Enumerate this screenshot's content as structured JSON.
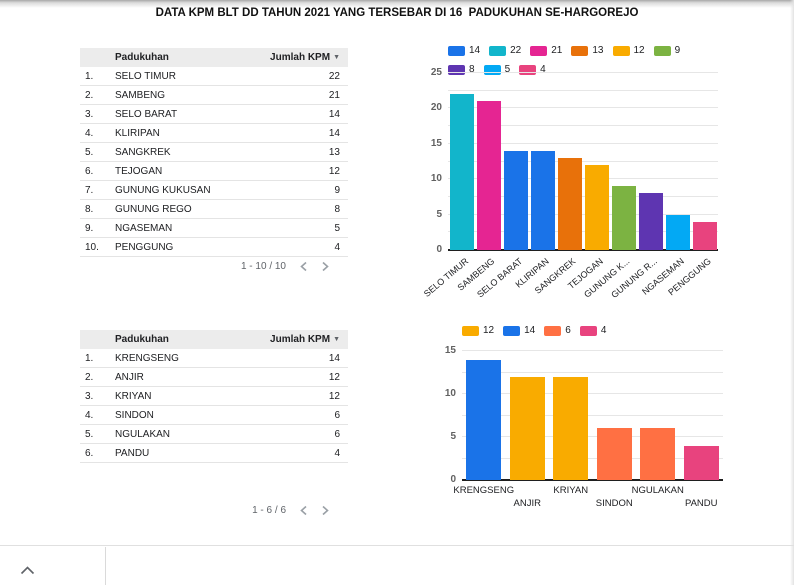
{
  "title": "DATA KPM BLT DD TAHUN 2021 YANG TERSEBAR DI 16  PADUKUHAN SE-HARGOREJO",
  "colors": {
    "table_header_bg": "#ececec",
    "divider": "#e4e4e4",
    "text": "#202124",
    "muted": "#5f6368",
    "gridline": "#e6e6e6",
    "axis_line": "#1f1f1f"
  },
  "tables": [
    {
      "header": {
        "dim": "Padukuhan",
        "metric": "Jumlah KPM",
        "sort": "▼"
      },
      "rows": [
        {
          "no": "1.",
          "padukuhan": "SELO TIMUR",
          "jumlah": "22"
        },
        {
          "no": "2.",
          "padukuhan": "SAMBENG",
          "jumlah": "21"
        },
        {
          "no": "3.",
          "padukuhan": "SELO BARAT",
          "jumlah": "14"
        },
        {
          "no": "4.",
          "padukuhan": "KLIRIPAN",
          "jumlah": "14"
        },
        {
          "no": "5.",
          "padukuhan": "SANGKREK",
          "jumlah": "13"
        },
        {
          "no": "6.",
          "padukuhan": "TEJOGAN",
          "jumlah": "12"
        },
        {
          "no": "7.",
          "padukuhan": "GUNUNG KUKUSAN",
          "jumlah": "9"
        },
        {
          "no": "8.",
          "padukuhan": "GUNUNG REGO",
          "jumlah": "8"
        },
        {
          "no": "9.",
          "padukuhan": "NGASEMAN",
          "jumlah": "5"
        },
        {
          "no": "10.",
          "padukuhan": "PENGGUNG",
          "jumlah": "4"
        }
      ],
      "pagination": "1 - 10 / 10"
    },
    {
      "header": {
        "dim": "Padukuhan",
        "metric": "Jumlah KPM",
        "sort": "▼"
      },
      "rows": [
        {
          "no": "1.",
          "padukuhan": "KRENGSENG",
          "jumlah": "14"
        },
        {
          "no": "2.",
          "padukuhan": "ANJIR",
          "jumlah": "12"
        },
        {
          "no": "3.",
          "padukuhan": "KRIYAN",
          "jumlah": "12"
        },
        {
          "no": "4.",
          "padukuhan": "SINDON",
          "jumlah": "6"
        },
        {
          "no": "5.",
          "padukuhan": "NGULAKAN",
          "jumlah": "6"
        },
        {
          "no": "6.",
          "padukuhan": "PANDU",
          "jumlah": "4"
        }
      ],
      "pagination": "1 - 6 / 6"
    }
  ],
  "chart_data": [
    {
      "type": "bar",
      "title": "",
      "categories": [
        "SELO TIMUR",
        "SAMBENG",
        "SELO BARAT",
        "KLIRIPAN",
        "SANGKREK",
        "TEJOGAN",
        "GUNUNG KUKUSAN",
        "GUNUNG REGO",
        "NGASEMAN",
        "PENGGUNG"
      ],
      "axis_labels": [
        "SELO TIMUR",
        "SAMBENG",
        "SELO BARAT",
        "KLIRIPAN",
        "SANGKREK",
        "TEJOGAN",
        "GUNUNG K...",
        "GUNUNG R...",
        "NGASEMAN",
        "PENGGUNG"
      ],
      "values": [
        22,
        21,
        14,
        14,
        13,
        12,
        9,
        8,
        5,
        4
      ],
      "bar_colors": [
        "#12b5cb",
        "#e52592",
        "#1a73e8",
        "#1a73e8",
        "#e8710a",
        "#f9ab00",
        "#7cb342",
        "#5e35b1",
        "#03a9f4",
        "#e8437e"
      ],
      "legend": [
        {
          "label": "14",
          "color": "#1a73e8"
        },
        {
          "label": "22",
          "color": "#12b5cb"
        },
        {
          "label": "21",
          "color": "#e52592"
        },
        {
          "label": "13",
          "color": "#e8710a"
        },
        {
          "label": "12",
          "color": "#f9ab00"
        },
        {
          "label": "9",
          "color": "#7cb342"
        },
        {
          "label": "8",
          "color": "#5e35b1"
        },
        {
          "label": "5",
          "color": "#03a9f4"
        },
        {
          "label": "4",
          "color": "#e8437e"
        }
      ],
      "legend_position": "top",
      "legend_wrap": 6,
      "xlabel": "",
      "ylabel": "",
      "ylim": [
        0,
        25
      ],
      "yticks": [
        0,
        5,
        10,
        15,
        20,
        25
      ],
      "grid_step": 2.5,
      "x_label_rotation": -40
    },
    {
      "type": "bar",
      "title": "",
      "categories": [
        "KRENGSENG",
        "ANJIR",
        "KRIYAN",
        "SINDON",
        "NGULAKAN",
        "PANDU"
      ],
      "axis_labels": [
        "KRENGSENG",
        "ANJIR",
        "KRIYAN",
        "SINDON",
        "NGULAKAN",
        "PANDU"
      ],
      "values": [
        14,
        12,
        12,
        6,
        6,
        4
      ],
      "bar_colors": [
        "#1a73e8",
        "#f9ab00",
        "#f9ab00",
        "#ff7043",
        "#ff7043",
        "#e8437e"
      ],
      "legend": [
        {
          "label": "12",
          "color": "#f9ab00"
        },
        {
          "label": "14",
          "color": "#1a73e8"
        },
        {
          "label": "6",
          "color": "#ff7043"
        },
        {
          "label": "4",
          "color": "#e8437e"
        }
      ],
      "legend_position": "top",
      "legend_wrap": 6,
      "xlabel": "",
      "ylabel": "",
      "ylim": [
        0,
        15
      ],
      "yticks": [
        0,
        5,
        10,
        15
      ],
      "grid_step": 2.5,
      "x_label_rotation": 0,
      "x_label_stagger": true
    }
  ]
}
